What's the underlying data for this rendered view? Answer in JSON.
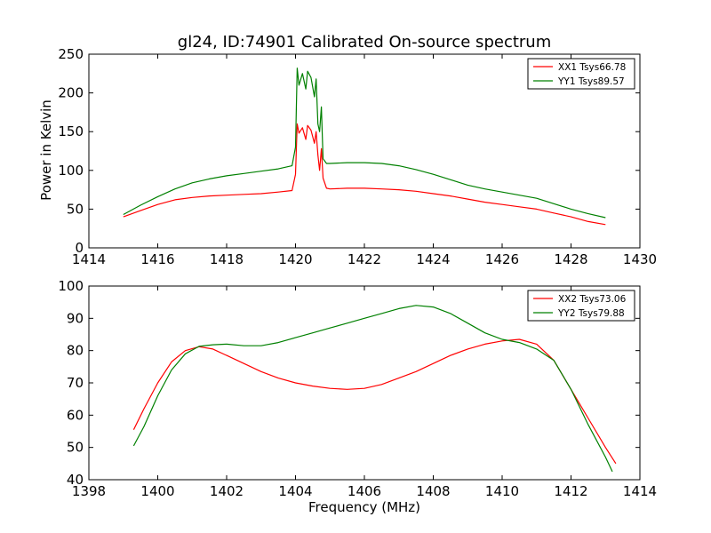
{
  "chart_data": [
    {
      "type": "line",
      "title": "gl24, ID:74901 Calibrated On-source spectrum",
      "xlabel": "",
      "ylabel": "Power in Kelvin",
      "xlim": [
        1414,
        1430
      ],
      "ylim": [
        0,
        250
      ],
      "xticks": [
        "1414",
        "1416",
        "1418",
        "1420",
        "1422",
        "1424",
        "1426",
        "1428",
        "1430"
      ],
      "yticks": [
        "0",
        "50",
        "100",
        "150",
        "200",
        "250"
      ],
      "legend": "top-right",
      "series": [
        {
          "name": "XX1 Tsys66.78",
          "color": "#ff0000",
          "x": [
            1415.0,
            1415.5,
            1416.0,
            1416.5,
            1417.0,
            1417.5,
            1418.0,
            1418.5,
            1419.0,
            1419.5,
            1419.9,
            1420.0,
            1420.05,
            1420.1,
            1420.2,
            1420.3,
            1420.35,
            1420.45,
            1420.55,
            1420.6,
            1420.65,
            1420.7,
            1420.75,
            1420.8,
            1420.9,
            1421.0,
            1421.5,
            1422.0,
            1422.5,
            1423.0,
            1423.5,
            1424.0,
            1424.5,
            1425.0,
            1425.5,
            1426.0,
            1426.5,
            1427.0,
            1427.5,
            1428.0,
            1428.5,
            1429.0
          ],
          "values": [
            40,
            48,
            56,
            62,
            65,
            67,
            68,
            69,
            70,
            72,
            74,
            95,
            160,
            148,
            155,
            140,
            158,
            152,
            135,
            150,
            120,
            100,
            128,
            90,
            77,
            76,
            77,
            77,
            76,
            75,
            73,
            70,
            67,
            63,
            59,
            56,
            53,
            50,
            45,
            40,
            34,
            30
          ]
        },
        {
          "name": "YY1 Tsys89.57",
          "color": "#008000",
          "x": [
            1415.0,
            1415.5,
            1416.0,
            1416.5,
            1417.0,
            1417.5,
            1418.0,
            1418.5,
            1419.0,
            1419.5,
            1419.9,
            1420.0,
            1420.05,
            1420.1,
            1420.2,
            1420.3,
            1420.35,
            1420.45,
            1420.55,
            1420.6,
            1420.65,
            1420.7,
            1420.75,
            1420.8,
            1420.9,
            1421.0,
            1421.5,
            1422.0,
            1422.5,
            1423.0,
            1423.5,
            1424.0,
            1424.5,
            1425.0,
            1425.5,
            1426.0,
            1426.5,
            1427.0,
            1427.5,
            1428.0,
            1428.5,
            1429.0
          ],
          "values": [
            43,
            55,
            66,
            76,
            84,
            89,
            93,
            96,
            99,
            102,
            106,
            130,
            232,
            210,
            225,
            205,
            228,
            220,
            195,
            218,
            160,
            150,
            182,
            115,
            109,
            109,
            110,
            110,
            109,
            106,
            101,
            95,
            88,
            81,
            76,
            72,
            68,
            64,
            57,
            50,
            44,
            39
          ]
        }
      ]
    },
    {
      "type": "line",
      "title": "",
      "xlabel": "Frequency (MHz)",
      "ylabel": "",
      "xlim": [
        1398,
        1414
      ],
      "ylim": [
        40,
        100
      ],
      "xticks": [
        "1398",
        "1400",
        "1402",
        "1404",
        "1406",
        "1408",
        "1410",
        "1412",
        "1414"
      ],
      "yticks": [
        "40",
        "50",
        "60",
        "70",
        "80",
        "90",
        "100"
      ],
      "legend": "top-right",
      "series": [
        {
          "name": "XX2 Tsys73.06",
          "color": "#ff0000",
          "x": [
            1399.3,
            1399.6,
            1400.0,
            1400.4,
            1400.8,
            1401.2,
            1401.6,
            1402.0,
            1402.5,
            1403.0,
            1403.5,
            1404.0,
            1404.5,
            1405.0,
            1405.5,
            1406.0,
            1406.5,
            1407.0,
            1407.5,
            1408.0,
            1408.5,
            1409.0,
            1409.5,
            1410.0,
            1410.5,
            1411.0,
            1411.5,
            1412.0,
            1412.5,
            1413.0,
            1413.3
          ],
          "values": [
            55.5,
            62,
            70,
            76.5,
            80,
            81.2,
            80.5,
            78.5,
            76,
            73.5,
            71.5,
            70,
            69,
            68.3,
            68,
            68.3,
            69.5,
            71.5,
            73.5,
            76,
            78.5,
            80.5,
            82,
            83,
            83.5,
            82,
            77,
            68,
            59,
            50,
            45
          ]
        },
        {
          "name": "YY2 Tsys79.88",
          "color": "#008000",
          "x": [
            1399.3,
            1399.6,
            1400.0,
            1400.4,
            1400.8,
            1401.2,
            1401.6,
            1402.0,
            1402.5,
            1403.0,
            1403.5,
            1404.0,
            1404.5,
            1405.0,
            1405.5,
            1406.0,
            1406.5,
            1407.0,
            1407.5,
            1408.0,
            1408.5,
            1409.0,
            1409.5,
            1410.0,
            1410.5,
            1411.0,
            1411.5,
            1412.0,
            1412.5,
            1413.0,
            1413.2
          ],
          "values": [
            50.5,
            56.5,
            66,
            74,
            79,
            81.3,
            81.8,
            82,
            81.5,
            81.5,
            82.5,
            84,
            85.5,
            87,
            88.5,
            90,
            91.5,
            93,
            94,
            93.5,
            91.5,
            88.5,
            85.5,
            83.5,
            82.5,
            80.5,
            77,
            68,
            57,
            47,
            42.5
          ]
        }
      ]
    }
  ]
}
